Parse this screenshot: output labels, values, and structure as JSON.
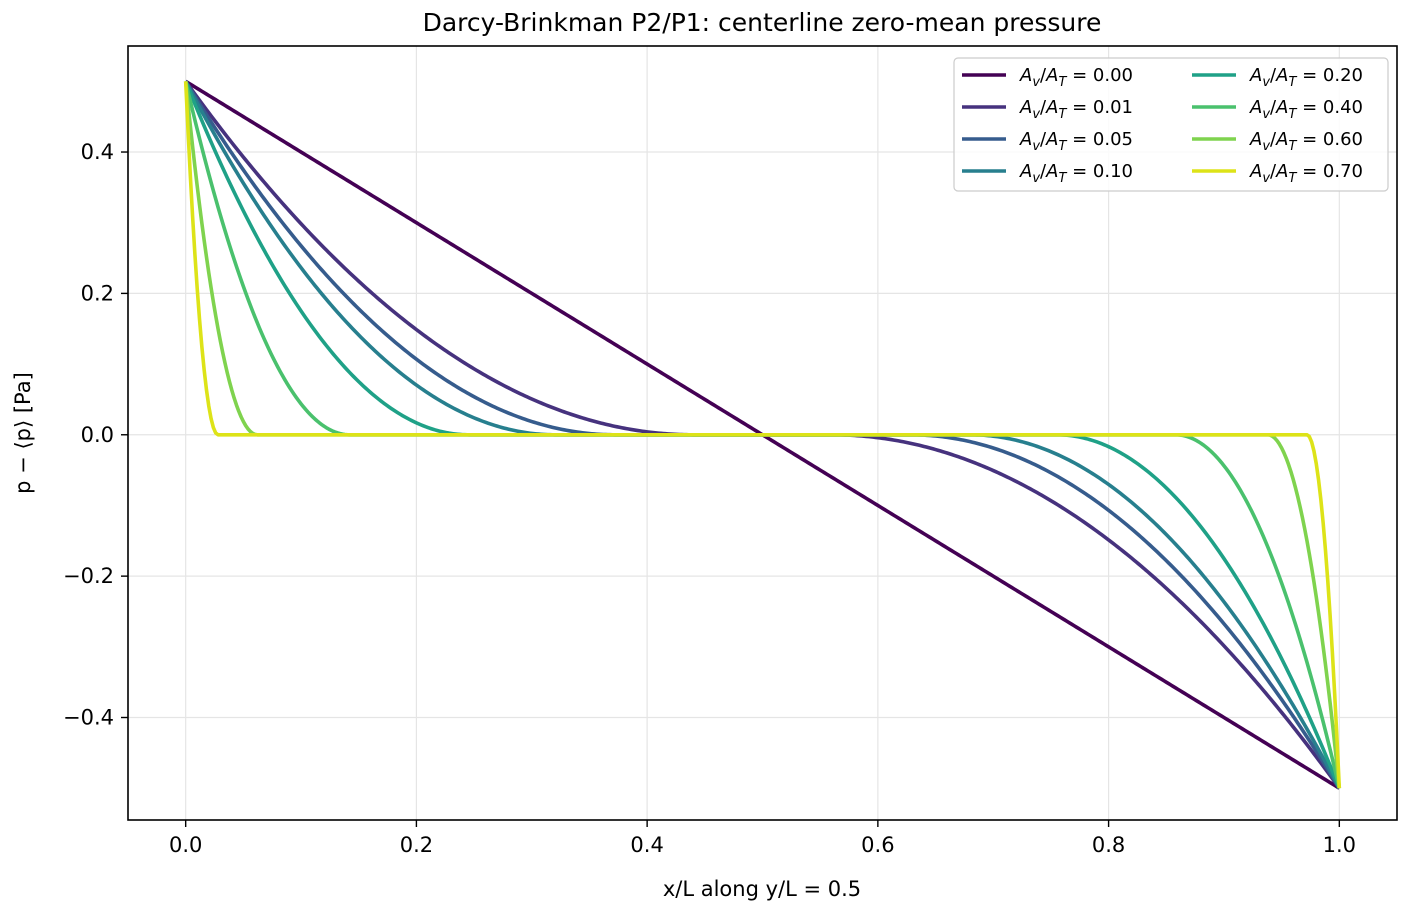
{
  "chart_data": {
    "type": "line",
    "title": "Darcy-Brinkman P2/P1: centerline zero-mean pressure",
    "xlabel": "x/L along y/L = 0.5",
    "ylabel": "p − ⟨p⟩ [Pa]",
    "xlim": [
      -0.05,
      1.05
    ],
    "ylim": [
      -0.545,
      0.55
    ],
    "x_ticks": [
      0.0,
      0.2,
      0.4,
      0.6,
      0.8,
      1.0
    ],
    "x_tick_labels": [
      "0.0",
      "0.2",
      "0.4",
      "0.6",
      "0.8",
      "1.0"
    ],
    "y_ticks": [
      0.4,
      0.2,
      0.0,
      -0.2,
      -0.4
    ],
    "y_tick_labels": [
      "0.4",
      "0.2",
      "0.0",
      "−0.2",
      "−0.4"
    ],
    "grid": true,
    "legend_position": "top-right",
    "legend_columns": 2,
    "series": [
      {
        "name": "A_v/A_T = 0.00",
        "ratio": "0.00",
        "color": "#440154",
        "x0": 0.5
      },
      {
        "name": "A_v/A_T = 0.01",
        "ratio": "0.01",
        "color": "#46327e",
        "x0": 0.44
      },
      {
        "name": "A_v/A_T = 0.05",
        "ratio": "0.05",
        "color": "#365c8d",
        "x0": 0.372
      },
      {
        "name": "A_v/A_T = 0.10",
        "ratio": "0.10",
        "color": "#277f8e",
        "x0": 0.32
      },
      {
        "name": "A_v/A_T = 0.20",
        "ratio": "0.20",
        "color": "#1fa187",
        "x0": 0.245
      },
      {
        "name": "A_v/A_T = 0.40",
        "ratio": "0.40",
        "color": "#4ac16d",
        "x0": 0.142
      },
      {
        "name": "A_v/A_T = 0.60",
        "ratio": "0.60",
        "color": "#7fd34e",
        "x0": 0.062
      },
      {
        "name": "A_v/A_T = 0.70",
        "ratio": "0.70",
        "color": "#dde318",
        "x0": 0.028
      }
    ],
    "series_shape": "p(0)=0.5, p(1)=-0.5; p=0 on [x0, 1-x0]; concave boundary-layer profile near each end"
  }
}
